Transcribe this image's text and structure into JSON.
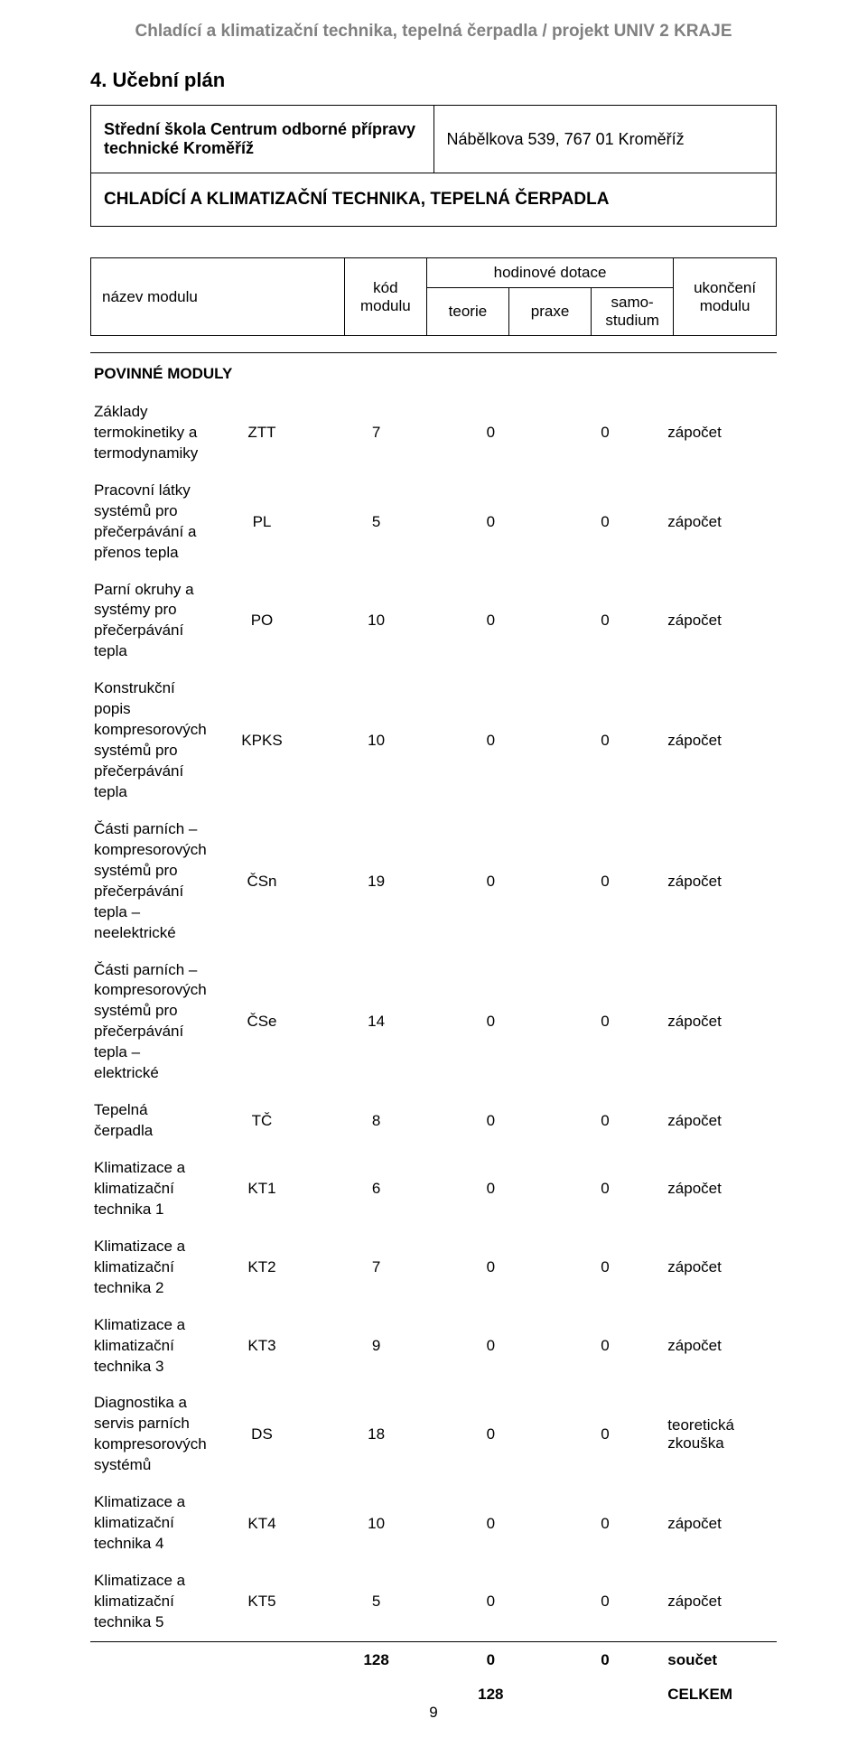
{
  "header": "Chladící a klimatizační technika, tepelná čerpadla / projekt UNIV 2 KRAJE",
  "section_number_title": "4. Učební plán",
  "school": {
    "name": "Střední škola Centrum odborné přípravy technické Kroměříž",
    "address": "Nábělkova 539, 767 01 Kroměříž",
    "program": "CHLADÍCÍ A KLIMATIZAČNÍ TECHNIKA, TEPELNÁ ČERPADLA"
  },
  "structure": {
    "name": "název modulu",
    "code": "kód modulu",
    "dotace": "hodinové dotace",
    "teorie": "teorie",
    "praxe": "praxe",
    "samo": "samo-\nstudium",
    "end": "ukončení modulu"
  },
  "sections": [
    {
      "title": "POVINNÉ MODULY"
    }
  ],
  "modules": [
    {
      "name": "Základy termokinetiky a termodynamiky",
      "code": "ZTT",
      "teorie": 7,
      "praxe": 0,
      "samo": 0,
      "end": "zápočet"
    },
    {
      "name": "Pracovní látky systémů pro přečerpávání a přenos tepla",
      "code": "PL",
      "teorie": 5,
      "praxe": 0,
      "samo": 0,
      "end": "zápočet"
    },
    {
      "name": "Parní okruhy a systémy pro přečerpávání tepla",
      "code": "PO",
      "teorie": 10,
      "praxe": 0,
      "samo": 0,
      "end": "zápočet"
    },
    {
      "name": "Konstrukční popis kompresorových systémů pro přečerpávání tepla",
      "code": "KPKS",
      "teorie": 10,
      "praxe": 0,
      "samo": 0,
      "end": "zápočet"
    },
    {
      "name": "Části parních – kompresorových systémů pro přečerpávání tepla – neelektrické",
      "code": "ČSn",
      "teorie": 19,
      "praxe": 0,
      "samo": 0,
      "end": "zápočet"
    },
    {
      "name": "Části parních – kompresorových systémů pro přečerpávání tepla – elektrické",
      "code": "ČSe",
      "teorie": 14,
      "praxe": 0,
      "samo": 0,
      "end": "zápočet"
    },
    {
      "name": "Tepelná čerpadla",
      "code": "TČ",
      "teorie": 8,
      "praxe": 0,
      "samo": 0,
      "end": "zápočet"
    },
    {
      "name": "Klimatizace a klimatizační technika 1",
      "code": "KT1",
      "teorie": 6,
      "praxe": 0,
      "samo": 0,
      "end": "zápočet"
    },
    {
      "name": "Klimatizace a klimatizační technika 2",
      "code": "KT2",
      "teorie": 7,
      "praxe": 0,
      "samo": 0,
      "end": "zápočet"
    },
    {
      "name": "Klimatizace a klimatizační technika 3",
      "code": "KT3",
      "teorie": 9,
      "praxe": 0,
      "samo": 0,
      "end": "zápočet"
    },
    {
      "name": "Diagnostika a servis parních kompresorových systémů",
      "code": "DS",
      "teorie": 18,
      "praxe": 0,
      "samo": 0,
      "end": "teoretická zkouška"
    },
    {
      "name": "Klimatizace a klimatizační technika 4",
      "code": "KT4",
      "teorie": 10,
      "praxe": 0,
      "samo": 0,
      "end": "zápočet"
    },
    {
      "name": "Klimatizace a klimatizační technika 5",
      "code": "KT5",
      "teorie": 5,
      "praxe": 0,
      "samo": 0,
      "end": "zápočet"
    }
  ],
  "totals": {
    "teorie": 128,
    "praxe": 0,
    "samo": 0,
    "label": "součet",
    "grand_value": 128,
    "grand_label": "CELKEM"
  },
  "page_number": "9",
  "colors": {
    "text": "#000000",
    "header_grey": "#808080",
    "border": "#000000",
    "background": "#ffffff"
  },
  "fonts": {
    "body_size_pt": 13,
    "header_size_pt": 14,
    "title_size_pt": 16,
    "family": "Arial"
  }
}
